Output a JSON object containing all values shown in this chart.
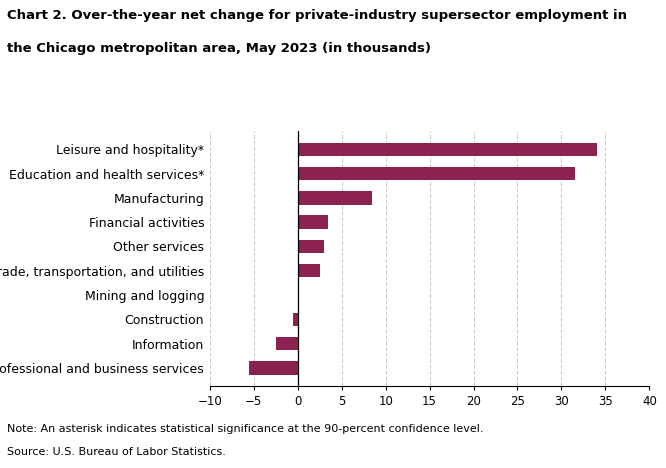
{
  "title_line1": "Chart 2. Over-the-year net change for private-industry supersector employment in",
  "title_line2": "the Chicago metropolitan area, May 2023 (in thousands)",
  "categories": [
    "Professional and business services",
    "Information",
    "Construction",
    "Mining and logging",
    "Trade, transportation, and utilities",
    "Other services",
    "Financial activities",
    "Manufacturing",
    "Education and health services*",
    "Leisure and hospitality*"
  ],
  "values": [
    -5.5,
    -2.5,
    -0.5,
    0.0,
    2.5,
    3.0,
    3.5,
    8.5,
    31.5,
    34.0
  ],
  "bar_color": "#8B2252",
  "xlim": [
    -10,
    40
  ],
  "xticks": [
    -10,
    -5,
    0,
    5,
    10,
    15,
    20,
    25,
    30,
    35,
    40
  ],
  "note_line1": "Note: An asterisk indicates statistical significance at the 90-percent confidence level.",
  "note_line2": "Source: U.S. Bureau of Labor Statistics.",
  "title_fontsize": 9.5,
  "label_fontsize": 9.0,
  "tick_fontsize": 8.5,
  "note_fontsize": 8.0
}
